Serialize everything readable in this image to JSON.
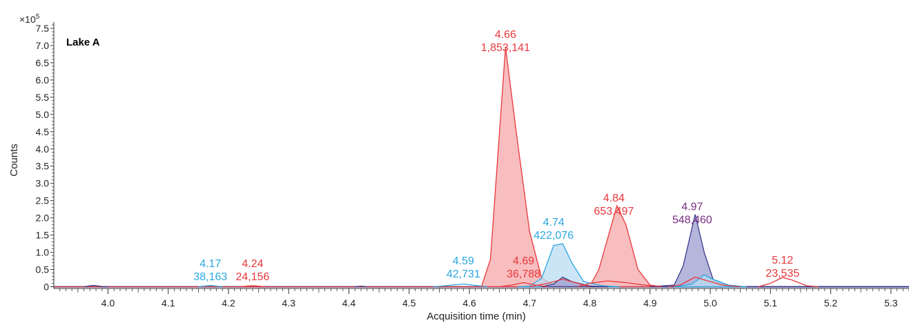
{
  "chart_data": {
    "type": "area",
    "panel_label": "Lake A",
    "xlabel": "Acquisition time (min)",
    "ylabel": "Counts",
    "y_multiplier": "×10",
    "y_multiplier_exp": "5",
    "xlim": [
      3.91,
      5.33
    ],
    "ylim": [
      -0.05,
      7.6
    ],
    "x_ticks": [
      4.0,
      4.1,
      4.2,
      4.3,
      4.4,
      4.5,
      4.6,
      4.7,
      4.8,
      4.9,
      5.0,
      5.1,
      5.2,
      5.3
    ],
    "x_tick_labels": [
      "4.0",
      "4.1",
      "4.2",
      "4.3",
      "4.4",
      "4.5",
      "4.6",
      "4.7",
      "4.8",
      "4.9",
      "5.0",
      "5.1",
      "5.2",
      "5.3"
    ],
    "y_ticks": [
      0,
      0.5,
      1.0,
      1.5,
      2.0,
      2.5,
      3.0,
      3.5,
      4.0,
      4.5,
      5.0,
      5.5,
      6.0,
      6.5,
      7.0,
      7.5
    ],
    "y_tick_labels": [
      "0",
      "0.5",
      "1.0",
      "1.5",
      "2.0",
      "2.5",
      "3.0",
      "3.5",
      "4.0",
      "4.5",
      "5.0",
      "5.5",
      "6.0",
      "6.5",
      "7.0",
      "7.5"
    ],
    "grid": false,
    "colors": {
      "red": "#e8373b",
      "red_fill": "#f4a7aa",
      "blue": "#2aa6df",
      "blue_fill": "#b9dcf3",
      "navy": "#3a3a8c",
      "navy_fill": "#9c9ed0",
      "purple": "#7a2e82"
    },
    "series": [
      {
        "color": "red",
        "filled": true,
        "points": [
          [
            3.91,
            0
          ],
          [
            4.62,
            0
          ],
          [
            4.635,
            0.8
          ],
          [
            4.66,
            6.95
          ],
          [
            4.68,
            4.2
          ],
          [
            4.7,
            1.6
          ],
          [
            4.72,
            0.25
          ],
          [
            4.74,
            0.05
          ],
          [
            4.82,
            0.02
          ],
          [
            4.84,
            0
          ]
        ]
      },
      {
        "color": "red",
        "filled": true,
        "points": [
          [
            4.77,
            0
          ],
          [
            4.8,
            0.02
          ],
          [
            4.815,
            0.5
          ],
          [
            4.845,
            2.35
          ],
          [
            4.86,
            1.8
          ],
          [
            4.88,
            0.5
          ],
          [
            4.9,
            0.05
          ],
          [
            4.92,
            0
          ]
        ]
      },
      {
        "color": "blue",
        "filled": true,
        "points": [
          [
            4.68,
            0
          ],
          [
            4.7,
            0.02
          ],
          [
            4.72,
            0.25
          ],
          [
            4.74,
            1.2
          ],
          [
            4.755,
            1.25
          ],
          [
            4.77,
            0.7
          ],
          [
            4.79,
            0.15
          ],
          [
            4.82,
            0.03
          ],
          [
            4.85,
            0
          ]
        ]
      },
      {
        "color": "navy",
        "filled": true,
        "points": [
          [
            4.9,
            0
          ],
          [
            4.94,
            0.05
          ],
          [
            4.955,
            0.6
          ],
          [
            4.975,
            2.1
          ],
          [
            4.99,
            1.0
          ],
          [
            5.005,
            0.2
          ],
          [
            5.03,
            0.03
          ],
          [
            5.06,
            0
          ]
        ]
      },
      {
        "color": "blue",
        "filled": true,
        "points": [
          [
            4.94,
            0
          ],
          [
            4.97,
            0.08
          ],
          [
            4.99,
            0.35
          ],
          [
            5.0,
            0.25
          ],
          [
            5.03,
            0.05
          ],
          [
            5.06,
            0
          ]
        ]
      },
      {
        "color": "navy",
        "filled": true,
        "points": [
          [
            4.72,
            0
          ],
          [
            4.74,
            0.08
          ],
          [
            4.755,
            0.28
          ],
          [
            4.77,
            0.15
          ],
          [
            4.8,
            0.02
          ],
          [
            4.83,
            0
          ]
        ]
      },
      {
        "color": "red",
        "filled": false,
        "points": [
          [
            4.78,
            0
          ],
          [
            4.8,
            0.1
          ],
          [
            4.83,
            0.17
          ],
          [
            4.86,
            0.12
          ],
          [
            4.89,
            0.05
          ],
          [
            4.92,
            0
          ]
        ]
      },
      {
        "color": "red",
        "filled": false,
        "points": [
          [
            4.7,
            0
          ],
          [
            4.73,
            0.1
          ],
          [
            4.755,
            0.22
          ],
          [
            4.78,
            0.1
          ],
          [
            4.8,
            0
          ]
        ]
      },
      {
        "color": "red",
        "filled": false,
        "points": [
          [
            4.93,
            0
          ],
          [
            4.95,
            0.05
          ],
          [
            4.975,
            0.28
          ],
          [
            4.99,
            0.2
          ],
          [
            5.02,
            0.05
          ],
          [
            5.05,
            0
          ]
        ]
      },
      {
        "color": "red",
        "filled": false,
        "points": [
          [
            5.08,
            0
          ],
          [
            5.1,
            0.1
          ],
          [
            5.12,
            0.27
          ],
          [
            5.135,
            0.2
          ],
          [
            5.16,
            0.03
          ],
          [
            5.18,
            0
          ]
        ]
      },
      {
        "color": "blue",
        "filled": false,
        "points": [
          [
            4.54,
            0
          ],
          [
            4.56,
            0.03
          ],
          [
            4.59,
            0.08
          ],
          [
            4.615,
            0.03
          ],
          [
            4.63,
            0
          ]
        ]
      },
      {
        "color": "red",
        "filled": false,
        "points": [
          [
            4.65,
            0
          ],
          [
            4.67,
            0.05
          ],
          [
            4.69,
            0.12
          ],
          [
            4.71,
            0.05
          ],
          [
            4.73,
            0
          ]
        ]
      },
      {
        "color": "blue",
        "filled": false,
        "points": [
          [
            4.15,
            0
          ],
          [
            4.16,
            0.02
          ],
          [
            4.17,
            0.04
          ],
          [
            4.18,
            0.02
          ],
          [
            4.19,
            0
          ]
        ]
      },
      {
        "color": "red",
        "filled": false,
        "points": [
          [
            4.22,
            0
          ],
          [
            4.23,
            0.02
          ],
          [
            4.24,
            0.03
          ],
          [
            4.25,
            0.02
          ],
          [
            4.26,
            0
          ]
        ]
      },
      {
        "color": "navy",
        "filled": false,
        "points": [
          [
            3.96,
            0
          ],
          [
            3.975,
            0.04
          ],
          [
            3.99,
            0.01
          ],
          [
            4.0,
            0
          ]
        ]
      },
      {
        "color": "navy",
        "filled": false,
        "points": [
          [
            4.41,
            0
          ],
          [
            4.42,
            0.02
          ],
          [
            4.43,
            0
          ]
        ]
      }
    ],
    "annotations": [
      {
        "rt": "4.17",
        "area": "38,163",
        "color": "blue",
        "x": 4.17,
        "y_top": 0.85
      },
      {
        "rt": "4.24",
        "area": "24,156",
        "color": "red",
        "x": 4.24,
        "y_top": 0.85
      },
      {
        "rt": "4.59",
        "area": "42,731",
        "color": "blue",
        "x": 4.59,
        "y_top": 0.93
      },
      {
        "rt": "4.69",
        "area": "36,788",
        "color": "red",
        "x": 4.69,
        "y_top": 0.93
      },
      {
        "rt": "4.66",
        "area": "1,853,141",
        "color": "red",
        "x": 4.66,
        "y_top": 7.5
      },
      {
        "rt": "4.74",
        "area": "422,076",
        "color": "blue",
        "x": 4.74,
        "y_top": 2.05
      },
      {
        "rt": "4.84",
        "area": "653,497",
        "color": "red",
        "x": 4.84,
        "y_top": 2.75
      },
      {
        "rt": "4.97",
        "area": "548,460",
        "color": "purple",
        "x": 4.97,
        "y_top": 2.5
      },
      {
        "rt": "5.12",
        "area": "23,535",
        "color": "red",
        "x": 5.12,
        "y_top": 0.95
      }
    ]
  }
}
